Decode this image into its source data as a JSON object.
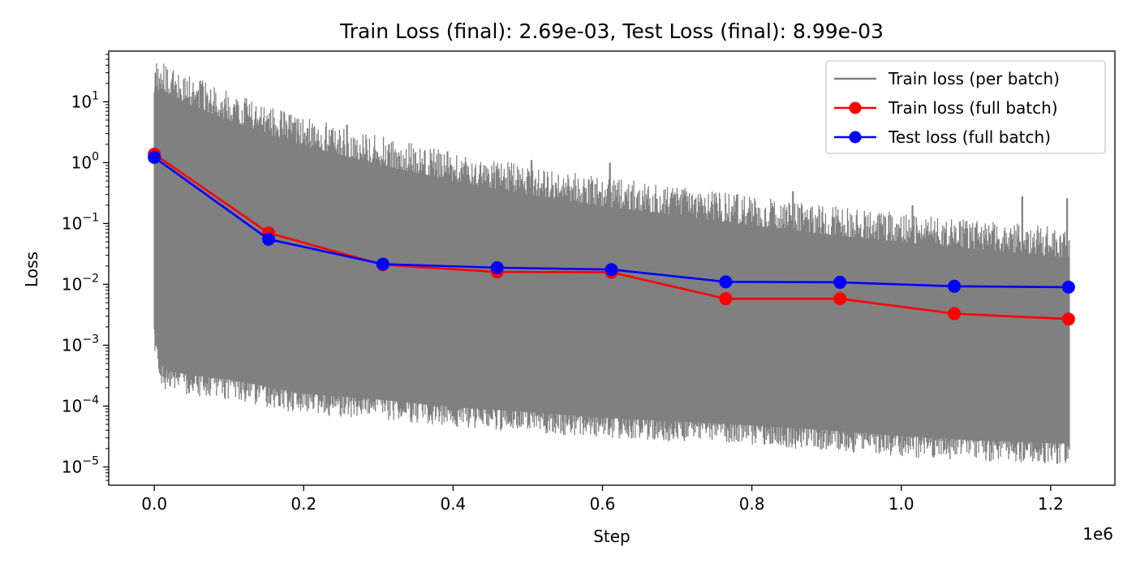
{
  "chart_data": {
    "type": "line",
    "title": "Train Loss (final): 2.69e-03, Test Loss (final): 8.99e-03",
    "xlabel": "Step",
    "ylabel": "Loss",
    "x_offset_label": "1e6",
    "xscale": "linear",
    "yscale": "log",
    "xlim": [
      -61000,
      1286000
    ],
    "ylim": [
      5e-06,
      68
    ],
    "grid": false,
    "legend_position": "upper right",
    "x_ticks": [
      {
        "value": 0,
        "label": "0.0"
      },
      {
        "value": 200000,
        "label": "0.2"
      },
      {
        "value": 400000,
        "label": "0.4"
      },
      {
        "value": 600000,
        "label": "0.6"
      },
      {
        "value": 800000,
        "label": "0.8"
      },
      {
        "value": 1000000,
        "label": "1.0"
      },
      {
        "value": 1200000,
        "label": "1.2"
      }
    ],
    "y_ticks": [
      {
        "value": 10,
        "base": "10",
        "exp": "1"
      },
      {
        "value": 1,
        "base": "10",
        "exp": "0"
      },
      {
        "value": 0.1,
        "base": "10",
        "exp": "−1"
      },
      {
        "value": 0.01,
        "base": "10",
        "exp": "−2"
      },
      {
        "value": 0.001,
        "base": "10",
        "exp": "−3"
      },
      {
        "value": 0.0001,
        "base": "10",
        "exp": "−4"
      },
      {
        "value": 1e-05,
        "base": "10",
        "exp": "−5"
      }
    ],
    "series": [
      {
        "name": "Train loss (per batch)",
        "color": "#808080",
        "style": "band",
        "envelope_x": [
          0,
          10000,
          50000,
          100000,
          150000,
          200000,
          300000,
          400000,
          500000,
          600000,
          700000,
          800000,
          900000,
          1000000,
          1100000,
          1225000
        ],
        "envelope_upper": [
          30,
          28,
          16,
          9,
          5.5,
          3.5,
          1.7,
          0.9,
          0.55,
          0.35,
          0.25,
          0.17,
          0.12,
          0.09,
          0.07,
          0.05
        ],
        "envelope_lower": [
          0.001,
          0.00025,
          0.0002,
          0.00017,
          0.00013,
          0.0001,
          8e-05,
          6e-05,
          5e-05,
          4e-05,
          3.5e-05,
          3e-05,
          2.5e-05,
          2e-05,
          1.7e-05,
          1.5e-05
        ],
        "spikes_upper": [
          {
            "x": 258000,
            "value": 4.2
          },
          {
            "x": 505000,
            "value": 1.1
          },
          {
            "x": 610000,
            "value": 1.0
          },
          {
            "x": 780000,
            "value": 0.3
          },
          {
            "x": 855000,
            "value": 0.34
          },
          {
            "x": 1015000,
            "value": 0.2
          },
          {
            "x": 1162000,
            "value": 0.28
          },
          {
            "x": 1222000,
            "value": 0.26
          }
        ]
      },
      {
        "name": "Train loss (full batch)",
        "color": "#ff0000",
        "marker": "o",
        "x": [
          0,
          153000,
          306000,
          459000,
          612000,
          765000,
          918000,
          1071000,
          1224000
        ],
        "values": [
          1.38,
          0.07,
          0.021,
          0.016,
          0.0158,
          0.0058,
          0.0058,
          0.0033,
          0.00269
        ]
      },
      {
        "name": "Test loss (full batch)",
        "color": "#0000ff",
        "marker": "o",
        "x": [
          0,
          153000,
          306000,
          459000,
          612000,
          765000,
          918000,
          1071000,
          1224000
        ],
        "values": [
          1.22,
          0.055,
          0.0215,
          0.0188,
          0.0175,
          0.011,
          0.0108,
          0.0093,
          0.00899
        ]
      }
    ]
  }
}
